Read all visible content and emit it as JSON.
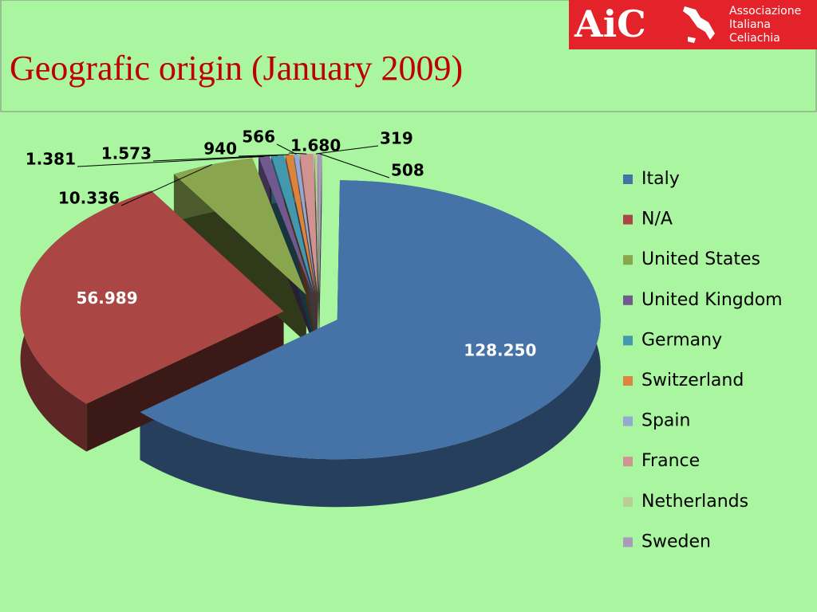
{
  "logo": {
    "mark": "AiC",
    "lines": [
      "Associazione",
      "Italiana",
      "Celiachia"
    ]
  },
  "chart_data": {
    "type": "pie",
    "title": "Geografic origin (January 2009)",
    "categories": [
      "Italy",
      "N/A",
      "United States",
      "United Kingdom",
      "Germany",
      "Switzerland",
      "Spain",
      "France",
      "Netherlands",
      "Sweden"
    ],
    "values": [
      128250,
      56989,
      10336,
      1381,
      1573,
      940,
      566,
      1680,
      319,
      508
    ],
    "value_labels": [
      "128.250",
      "56.989",
      "10.336",
      "1.381",
      "1.573",
      "940",
      "566",
      "1.680",
      "319",
      "508"
    ],
    "colors": [
      "#4572a7",
      "#aa4643",
      "#89a54e",
      "#71588f",
      "#4198af",
      "#db843d",
      "#93a9cf",
      "#d19392",
      "#b9cd96",
      "#a99bbd"
    ],
    "legend": "right"
  }
}
